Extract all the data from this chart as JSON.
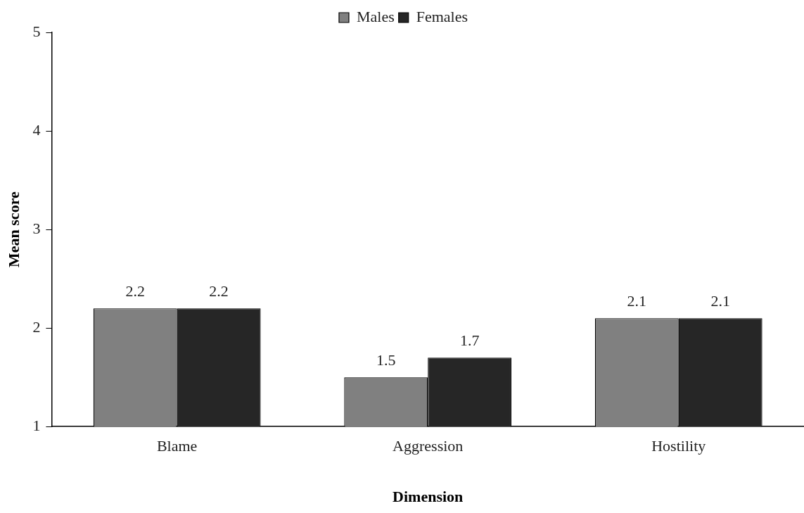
{
  "chart_data": {
    "type": "bar",
    "xlabel": "Dimension",
    "ylabel": "Mean score",
    "categories": [
      "Blame",
      "Aggression",
      "Hostility"
    ],
    "series": [
      {
        "name": "Males",
        "color": "#808080",
        "values": [
          2.2,
          1.5,
          2.1
        ]
      },
      {
        "name": "Females",
        "color": "#262626",
        "values": [
          2.2,
          1.7,
          2.1
        ]
      }
    ],
    "ylim": [
      1,
      5
    ],
    "yticks": [
      1,
      2,
      3,
      4,
      5
    ],
    "grid": false,
    "legend": "top",
    "data_labels": true
  }
}
